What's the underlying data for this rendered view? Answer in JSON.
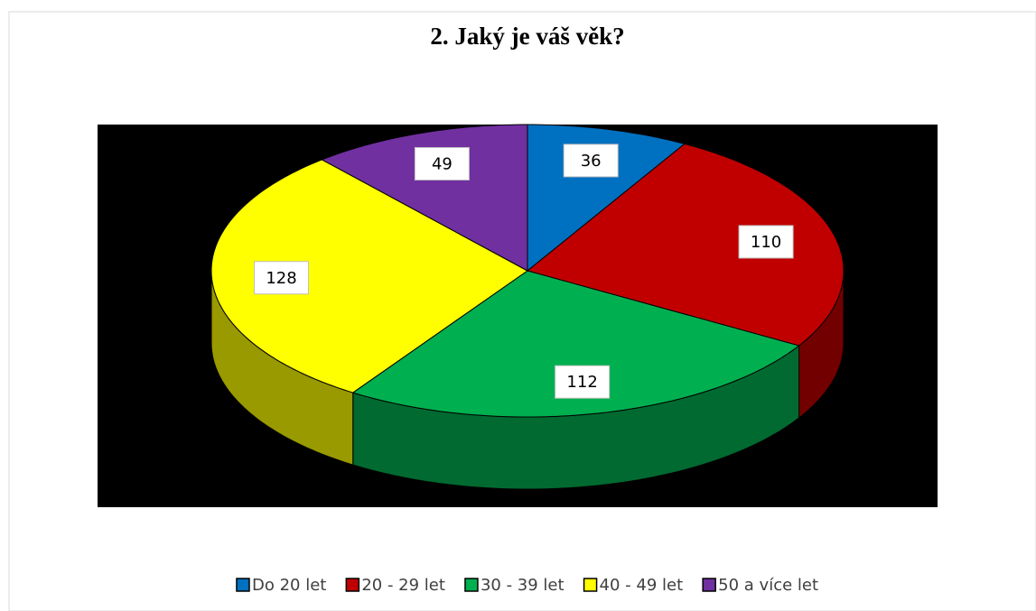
{
  "chart_data": {
    "type": "pie",
    "title": "2. Jaký je váš věk?",
    "categories": [
      "Do 20 let",
      "20 - 29 let",
      "30 - 39 let",
      "40 - 49 let",
      "50 a více let"
    ],
    "values": [
      36,
      110,
      112,
      128,
      49
    ],
    "colors": [
      "#0070c0",
      "#c00000",
      "#00b050",
      "#ffff00",
      "#7030a0"
    ],
    "legend": "bottom"
  }
}
